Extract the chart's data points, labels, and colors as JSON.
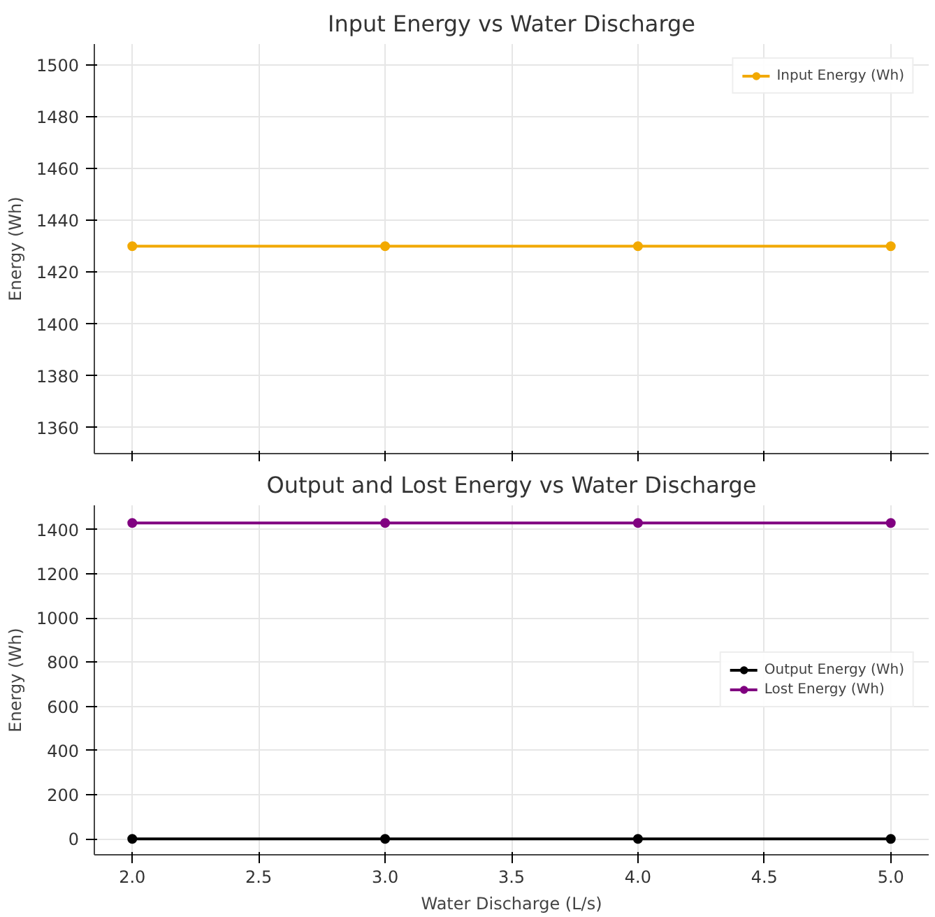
{
  "chart_data": [
    {
      "type": "line",
      "title": "Input Energy vs Water Discharge",
      "ylabel": "Energy (Wh)",
      "x": [
        2.0,
        3.0,
        4.0,
        5.0
      ],
      "series": [
        {
          "name": "Input Energy (Wh)",
          "color": "#f2a900",
          "values": [
            1430,
            1430,
            1430,
            1430
          ]
        }
      ],
      "xlim": [
        1.85,
        5.15
      ],
      "xticks": [
        2.0,
        2.5,
        3.0,
        3.5,
        4.0,
        4.5,
        5.0
      ],
      "ylim": [
        1350,
        1508
      ],
      "yticks": [
        1360,
        1380,
        1400,
        1420,
        1440,
        1460,
        1480,
        1500
      ],
      "tick_labels": "y",
      "grid": true,
      "legend": "top right",
      "marker": "circle",
      "line_style": "solid"
    },
    {
      "type": "line",
      "title": "Output and Lost Energy vs Water Discharge",
      "xlabel": "Water Discharge (L/s)",
      "ylabel": "Energy (Wh)",
      "x": [
        2.0,
        3.0,
        4.0,
        5.0
      ],
      "series": [
        {
          "name": "Output Energy (Wh)",
          "color": "#000000",
          "values": [
            0,
            0,
            0,
            0
          ]
        },
        {
          "name": "Lost Energy (Wh)",
          "color": "#800080",
          "values": [
            1430,
            1430,
            1430,
            1430
          ]
        }
      ],
      "xlim": [
        1.85,
        5.15
      ],
      "xticks": [
        {
          "value": 2.0,
          "label": "2.0"
        },
        2.5,
        {
          "value": 3.0,
          "label": "3.0"
        },
        3.5,
        {
          "value": 4.0,
          "label": "4.0"
        },
        4.5,
        {
          "value": 5.0,
          "label": "5.0"
        }
      ],
      "ylim": [
        -72,
        1510
      ],
      "yticks": [
        0,
        200,
        400,
        600,
        800,
        1000,
        1200,
        1400
      ],
      "grid": true,
      "legend": "right",
      "marker": "circle",
      "line_style": "solid"
    }
  ]
}
